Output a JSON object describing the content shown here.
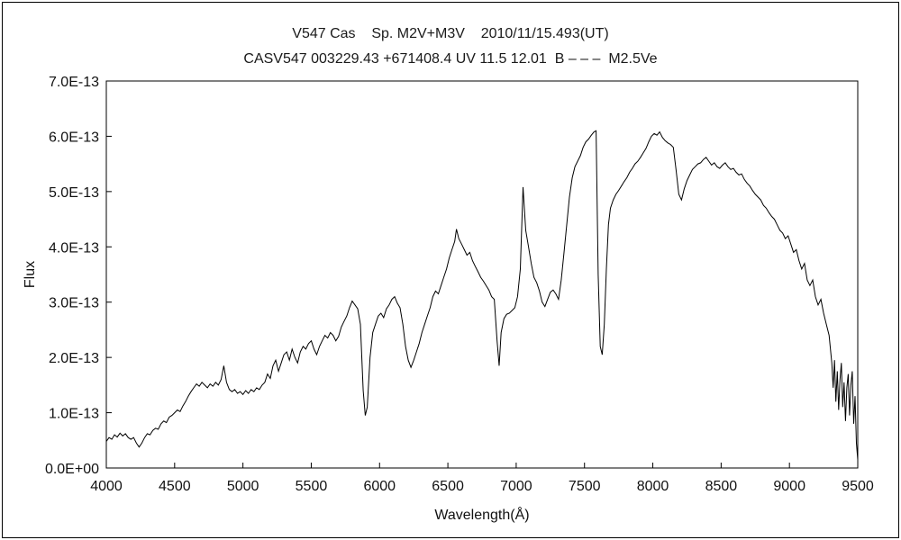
{
  "titles": {
    "line1": "V547 Cas    Sp. M2V+M3V    2010/11/15.493(UT)",
    "line2": "CASV547 003229.43 +671408.4 UV 11.5 12.01  B – – –  M2.5Ve"
  },
  "colors": {
    "line": "#000000",
    "background": "#ffffff",
    "frame": "#000000"
  },
  "chart_data": {
    "type": "line",
    "title": "V547 Cas spectrum",
    "xlabel": "Wavelength(Å)",
    "ylabel": "Flux",
    "xlim": [
      4000,
      9500
    ],
    "ylim": [
      0,
      7
    ],
    "flux_unit_factor": "1.0E-13",
    "x_ticks": [
      4000,
      4500,
      5000,
      5500,
      6000,
      6500,
      7000,
      7500,
      8000,
      8500,
      9000,
      9500
    ],
    "y_ticks": [
      0,
      1,
      2,
      3,
      4,
      5,
      6,
      7
    ],
    "y_tick_labels": [
      "0.0E+00",
      "1.0E-13",
      "2.0E-13",
      "3.0E-13",
      "4.0E-13",
      "5.0E-13",
      "6.0E-13",
      "7.0E-13"
    ],
    "grid": false,
    "legend": false,
    "line_color": "#000000",
    "points": [
      [
        4000,
        0.48
      ],
      [
        4020,
        0.55
      ],
      [
        4040,
        0.52
      ],
      [
        4060,
        0.6
      ],
      [
        4080,
        0.56
      ],
      [
        4100,
        0.63
      ],
      [
        4120,
        0.58
      ],
      [
        4140,
        0.62
      ],
      [
        4160,
        0.55
      ],
      [
        4180,
        0.52
      ],
      [
        4200,
        0.55
      ],
      [
        4220,
        0.45
      ],
      [
        4240,
        0.38
      ],
      [
        4260,
        0.45
      ],
      [
        4280,
        0.55
      ],
      [
        4300,
        0.62
      ],
      [
        4320,
        0.6
      ],
      [
        4340,
        0.68
      ],
      [
        4360,
        0.72
      ],
      [
        4380,
        0.7
      ],
      [
        4400,
        0.8
      ],
      [
        4420,
        0.85
      ],
      [
        4440,
        0.82
      ],
      [
        4460,
        0.92
      ],
      [
        4480,
        0.95
      ],
      [
        4500,
        1.0
      ],
      [
        4520,
        1.05
      ],
      [
        4540,
        1.02
      ],
      [
        4560,
        1.12
      ],
      [
        4580,
        1.2
      ],
      [
        4600,
        1.3
      ],
      [
        4620,
        1.38
      ],
      [
        4640,
        1.45
      ],
      [
        4660,
        1.52
      ],
      [
        4680,
        1.48
      ],
      [
        4700,
        1.55
      ],
      [
        4720,
        1.5
      ],
      [
        4740,
        1.45
      ],
      [
        4760,
        1.52
      ],
      [
        4780,
        1.48
      ],
      [
        4800,
        1.55
      ],
      [
        4820,
        1.5
      ],
      [
        4840,
        1.6
      ],
      [
        4860,
        1.85
      ],
      [
        4880,
        1.55
      ],
      [
        4900,
        1.42
      ],
      [
        4920,
        1.38
      ],
      [
        4940,
        1.42
      ],
      [
        4960,
        1.35
      ],
      [
        4980,
        1.38
      ],
      [
        5000,
        1.33
      ],
      [
        5020,
        1.4
      ],
      [
        5040,
        1.35
      ],
      [
        5060,
        1.42
      ],
      [
        5080,
        1.38
      ],
      [
        5100,
        1.45
      ],
      [
        5120,
        1.42
      ],
      [
        5140,
        1.5
      ],
      [
        5160,
        1.55
      ],
      [
        5180,
        1.7
      ],
      [
        5200,
        1.62
      ],
      [
        5220,
        1.85
      ],
      [
        5240,
        1.95
      ],
      [
        5260,
        1.75
      ],
      [
        5280,
        1.9
      ],
      [
        5300,
        2.05
      ],
      [
        5320,
        2.1
      ],
      [
        5340,
        1.95
      ],
      [
        5360,
        2.15
      ],
      [
        5380,
        2.0
      ],
      [
        5400,
        1.9
      ],
      [
        5420,
        2.1
      ],
      [
        5440,
        2.2
      ],
      [
        5460,
        2.15
      ],
      [
        5480,
        2.25
      ],
      [
        5500,
        2.3
      ],
      [
        5520,
        2.15
      ],
      [
        5540,
        2.05
      ],
      [
        5560,
        2.2
      ],
      [
        5580,
        2.3
      ],
      [
        5600,
        2.4
      ],
      [
        5620,
        2.35
      ],
      [
        5640,
        2.45
      ],
      [
        5660,
        2.4
      ],
      [
        5680,
        2.3
      ],
      [
        5700,
        2.38
      ],
      [
        5720,
        2.55
      ],
      [
        5740,
        2.65
      ],
      [
        5760,
        2.75
      ],
      [
        5780,
        2.9
      ],
      [
        5800,
        3.02
      ],
      [
        5820,
        2.95
      ],
      [
        5840,
        2.88
      ],
      [
        5860,
        2.6
      ],
      [
        5880,
        1.4
      ],
      [
        5895,
        0.95
      ],
      [
        5910,
        1.1
      ],
      [
        5930,
        2.0
      ],
      [
        5950,
        2.45
      ],
      [
        5970,
        2.6
      ],
      [
        5990,
        2.75
      ],
      [
        6010,
        2.8
      ],
      [
        6030,
        2.72
      ],
      [
        6050,
        2.88
      ],
      [
        6070,
        2.95
      ],
      [
        6090,
        3.05
      ],
      [
        6110,
        3.1
      ],
      [
        6130,
        2.98
      ],
      [
        6150,
        2.9
      ],
      [
        6170,
        2.6
      ],
      [
        6190,
        2.2
      ],
      [
        6210,
        1.95
      ],
      [
        6230,
        1.82
      ],
      [
        6250,
        1.95
      ],
      [
        6270,
        2.1
      ],
      [
        6290,
        2.25
      ],
      [
        6310,
        2.45
      ],
      [
        6330,
        2.6
      ],
      [
        6350,
        2.75
      ],
      [
        6370,
        2.9
      ],
      [
        6390,
        3.1
      ],
      [
        6410,
        3.2
      ],
      [
        6430,
        3.15
      ],
      [
        6450,
        3.3
      ],
      [
        6470,
        3.45
      ],
      [
        6490,
        3.6
      ],
      [
        6510,
        3.8
      ],
      [
        6530,
        3.95
      ],
      [
        6550,
        4.1
      ],
      [
        6563,
        4.32
      ],
      [
        6580,
        4.15
      ],
      [
        6600,
        4.05
      ],
      [
        6620,
        3.95
      ],
      [
        6640,
        3.85
      ],
      [
        6660,
        3.9
      ],
      [
        6680,
        3.75
      ],
      [
        6700,
        3.65
      ],
      [
        6720,
        3.55
      ],
      [
        6740,
        3.45
      ],
      [
        6760,
        3.38
      ],
      [
        6780,
        3.3
      ],
      [
        6800,
        3.22
      ],
      [
        6820,
        3.1
      ],
      [
        6840,
        3.05
      ],
      [
        6860,
        2.3
      ],
      [
        6875,
        1.85
      ],
      [
        6890,
        2.45
      ],
      [
        6910,
        2.7
      ],
      [
        6930,
        2.78
      ],
      [
        6950,
        2.8
      ],
      [
        6970,
        2.85
      ],
      [
        6990,
        2.9
      ],
      [
        7010,
        3.1
      ],
      [
        7030,
        3.6
      ],
      [
        7050,
        5.08
      ],
      [
        7070,
        4.3
      ],
      [
        7090,
        4.0
      ],
      [
        7110,
        3.7
      ],
      [
        7130,
        3.45
      ],
      [
        7150,
        3.35
      ],
      [
        7170,
        3.2
      ],
      [
        7190,
        3.0
      ],
      [
        7210,
        2.92
      ],
      [
        7230,
        3.05
      ],
      [
        7250,
        3.18
      ],
      [
        7270,
        3.22
      ],
      [
        7290,
        3.15
      ],
      [
        7310,
        3.05
      ],
      [
        7330,
        3.4
      ],
      [
        7350,
        3.9
      ],
      [
        7370,
        4.4
      ],
      [
        7390,
        4.9
      ],
      [
        7410,
        5.25
      ],
      [
        7430,
        5.45
      ],
      [
        7450,
        5.55
      ],
      [
        7470,
        5.65
      ],
      [
        7490,
        5.8
      ],
      [
        7510,
        5.9
      ],
      [
        7530,
        5.95
      ],
      [
        7550,
        6.02
      ],
      [
        7570,
        6.08
      ],
      [
        7585,
        6.1
      ],
      [
        7600,
        3.5
      ],
      [
        7615,
        2.2
      ],
      [
        7630,
        2.05
      ],
      [
        7645,
        2.6
      ],
      [
        7660,
        3.6
      ],
      [
        7675,
        4.4
      ],
      [
        7690,
        4.7
      ],
      [
        7710,
        4.85
      ],
      [
        7730,
        4.95
      ],
      [
        7750,
        5.02
      ],
      [
        7770,
        5.1
      ],
      [
        7790,
        5.18
      ],
      [
        7810,
        5.25
      ],
      [
        7830,
        5.35
      ],
      [
        7850,
        5.42
      ],
      [
        7870,
        5.5
      ],
      [
        7890,
        5.55
      ],
      [
        7910,
        5.62
      ],
      [
        7930,
        5.7
      ],
      [
        7950,
        5.78
      ],
      [
        7970,
        5.9
      ],
      [
        7990,
        6.0
      ],
      [
        8010,
        6.05
      ],
      [
        8030,
        6.02
      ],
      [
        8050,
        6.08
      ],
      [
        8070,
        5.98
      ],
      [
        8090,
        5.92
      ],
      [
        8110,
        5.88
      ],
      [
        8130,
        5.85
      ],
      [
        8150,
        5.8
      ],
      [
        8170,
        5.4
      ],
      [
        8190,
        4.95
      ],
      [
        8210,
        4.85
      ],
      [
        8230,
        5.05
      ],
      [
        8250,
        5.2
      ],
      [
        8270,
        5.3
      ],
      [
        8290,
        5.4
      ],
      [
        8310,
        5.45
      ],
      [
        8330,
        5.5
      ],
      [
        8350,
        5.52
      ],
      [
        8370,
        5.58
      ],
      [
        8390,
        5.62
      ],
      [
        8410,
        5.55
      ],
      [
        8430,
        5.48
      ],
      [
        8450,
        5.52
      ],
      [
        8470,
        5.45
      ],
      [
        8490,
        5.42
      ],
      [
        8510,
        5.48
      ],
      [
        8530,
        5.52
      ],
      [
        8550,
        5.45
      ],
      [
        8570,
        5.4
      ],
      [
        8590,
        5.42
      ],
      [
        8610,
        5.35
      ],
      [
        8630,
        5.3
      ],
      [
        8650,
        5.32
      ],
      [
        8670,
        5.22
      ],
      [
        8690,
        5.15
      ],
      [
        8710,
        5.1
      ],
      [
        8730,
        5.02
      ],
      [
        8750,
        4.95
      ],
      [
        8770,
        4.9
      ],
      [
        8790,
        4.85
      ],
      [
        8810,
        4.75
      ],
      [
        8830,
        4.7
      ],
      [
        8850,
        4.62
      ],
      [
        8870,
        4.55
      ],
      [
        8890,
        4.5
      ],
      [
        8910,
        4.4
      ],
      [
        8930,
        4.3
      ],
      [
        8950,
        4.25
      ],
      [
        8970,
        4.15
      ],
      [
        8990,
        4.2
      ],
      [
        9010,
        4.05
      ],
      [
        9030,
        3.9
      ],
      [
        9050,
        3.95
      ],
      [
        9070,
        3.75
      ],
      [
        9090,
        3.6
      ],
      [
        9110,
        3.7
      ],
      [
        9130,
        3.4
      ],
      [
        9150,
        3.3
      ],
      [
        9170,
        3.4
      ],
      [
        9190,
        3.1
      ],
      [
        9210,
        2.95
      ],
      [
        9230,
        3.05
      ],
      [
        9250,
        2.8
      ],
      [
        9270,
        2.6
      ],
      [
        9290,
        2.4
      ],
      [
        9310,
        1.9
      ],
      [
        9320,
        1.45
      ],
      [
        9330,
        1.95
      ],
      [
        9340,
        1.2
      ],
      [
        9350,
        1.75
      ],
      [
        9360,
        1.05
      ],
      [
        9370,
        1.6
      ],
      [
        9380,
        1.9
      ],
      [
        9390,
        1.1
      ],
      [
        9400,
        1.55
      ],
      [
        9410,
        0.85
      ],
      [
        9420,
        1.45
      ],
      [
        9430,
        1.7
      ],
      [
        9440,
        0.95
      ],
      [
        9450,
        1.5
      ],
      [
        9460,
        1.75
      ],
      [
        9470,
        0.8
      ],
      [
        9480,
        1.3
      ],
      [
        9490,
        0.45
      ],
      [
        9500,
        0.15
      ]
    ]
  }
}
